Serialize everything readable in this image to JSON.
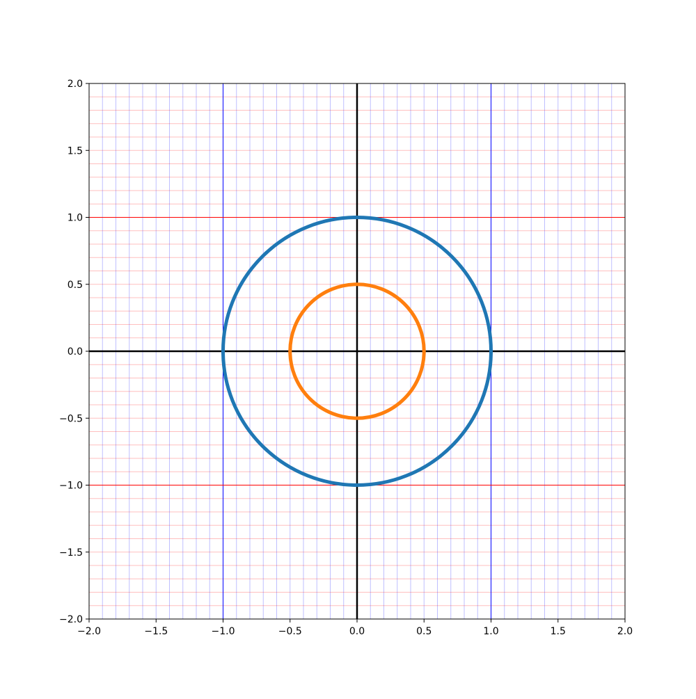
{
  "chart_data": {
    "type": "line",
    "title": "",
    "xlabel": "",
    "ylabel": "",
    "xlim": [
      -2.0,
      2.0
    ],
    "ylim": [
      -2.0,
      2.0
    ],
    "aspect": "equal",
    "grid": {
      "major_x_step": 1.0,
      "major_y_step": 1.0,
      "minor_x_step": 0.1,
      "minor_y_step": 0.1,
      "major_x_color": "#0000ff",
      "major_y_color": "#ff0000",
      "minor_x_color": "#0000ff",
      "minor_y_color": "#ff0000"
    },
    "axes_lines": {
      "x0": 0,
      "y0": 0,
      "color": "#000000"
    },
    "x_ticks": [
      {
        "value": -2.0,
        "label": "−2.0"
      },
      {
        "value": -1.5,
        "label": "−1.5"
      },
      {
        "value": -1.0,
        "label": "−1.0"
      },
      {
        "value": -0.5,
        "label": "−0.5"
      },
      {
        "value": 0.0,
        "label": "0.0"
      },
      {
        "value": 0.5,
        "label": "0.5"
      },
      {
        "value": 1.0,
        "label": "1.0"
      },
      {
        "value": 1.5,
        "label": "1.5"
      },
      {
        "value": 2.0,
        "label": "2.0"
      }
    ],
    "y_ticks": [
      {
        "value": -2.0,
        "label": "−2.0"
      },
      {
        "value": -1.5,
        "label": "−1.5"
      },
      {
        "value": -1.0,
        "label": "−1.0"
      },
      {
        "value": -0.5,
        "label": "−0.5"
      },
      {
        "value": 0.0,
        "label": "0.0"
      },
      {
        "value": 0.5,
        "label": "0.5"
      },
      {
        "value": 1.0,
        "label": "1.0"
      },
      {
        "value": 1.5,
        "label": "1.5"
      },
      {
        "value": 2.0,
        "label": "2.0"
      }
    ],
    "series": [
      {
        "shape": "circle",
        "center": [
          0,
          0
        ],
        "radius": 1.0,
        "color": "#1f77b4"
      },
      {
        "shape": "circle",
        "center": [
          0,
          0
        ],
        "radius": 0.5,
        "color": "#ff7f0e"
      }
    ]
  }
}
